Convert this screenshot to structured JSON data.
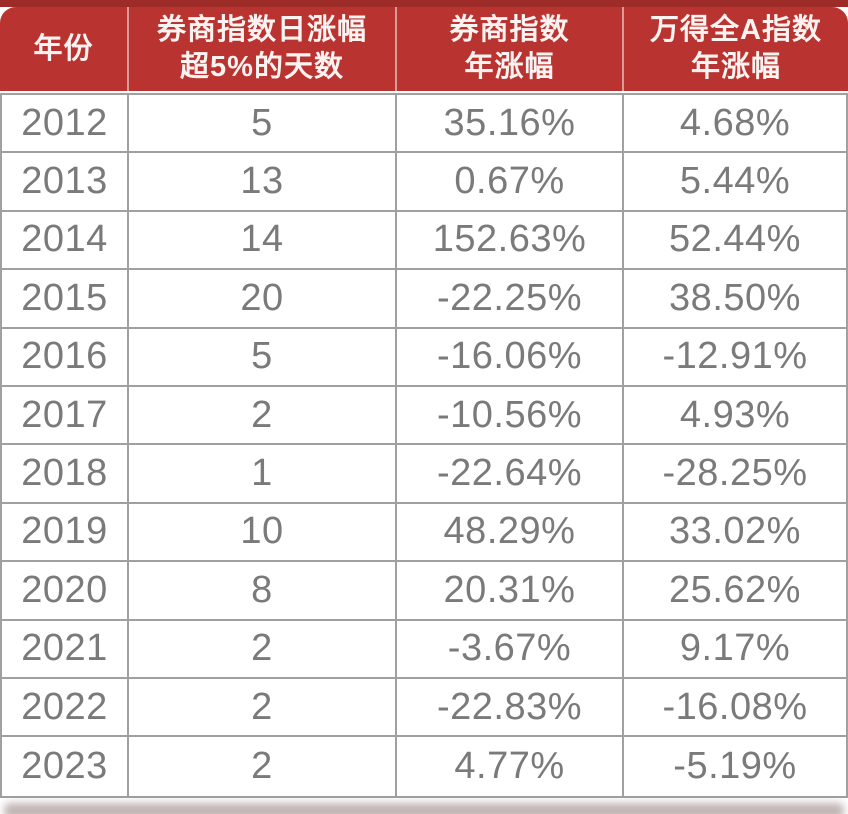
{
  "header": {
    "cells": [
      {
        "lines": [
          "年份"
        ]
      },
      {
        "lines": [
          "券商指数日涨幅",
          "超5%的天数"
        ]
      },
      {
        "lines": [
          "券商指数",
          "年涨幅"
        ]
      },
      {
        "lines": [
          "万得全A指数",
          "年涨幅"
        ]
      }
    ]
  },
  "chart_data": {
    "type": "table",
    "columns": [
      "年份",
      "券商指数日涨幅超5%的天数",
      "券商指数年涨幅",
      "万得全A指数年涨幅"
    ],
    "rows": [
      [
        "2012",
        "5",
        "35.16%",
        "4.68%"
      ],
      [
        "2013",
        "13",
        "0.67%",
        "5.44%"
      ],
      [
        "2014",
        "14",
        "152.63%",
        "52.44%"
      ],
      [
        "2015",
        "20",
        "-22.25%",
        "38.50%"
      ],
      [
        "2016",
        "5",
        "-16.06%",
        "-12.91%"
      ],
      [
        "2017",
        "2",
        "-10.56%",
        "4.93%"
      ],
      [
        "2018",
        "1",
        "-22.64%",
        "-28.25%"
      ],
      [
        "2019",
        "10",
        "48.29%",
        "33.02%"
      ],
      [
        "2020",
        "8",
        "20.31%",
        "25.62%"
      ],
      [
        "2021",
        "2",
        "-3.67%",
        "9.17%"
      ],
      [
        "2022",
        "2",
        "-22.83%",
        "-16.08%"
      ],
      [
        "2023",
        "2",
        "4.77%",
        "-5.19%"
      ]
    ]
  },
  "colors": {
    "header_bg": "#b93430",
    "top_strip": "#9d2c29",
    "header_text": "#fbf3f1",
    "body_text": "#7a7a7a",
    "grid_border": "#a0a0a0"
  }
}
